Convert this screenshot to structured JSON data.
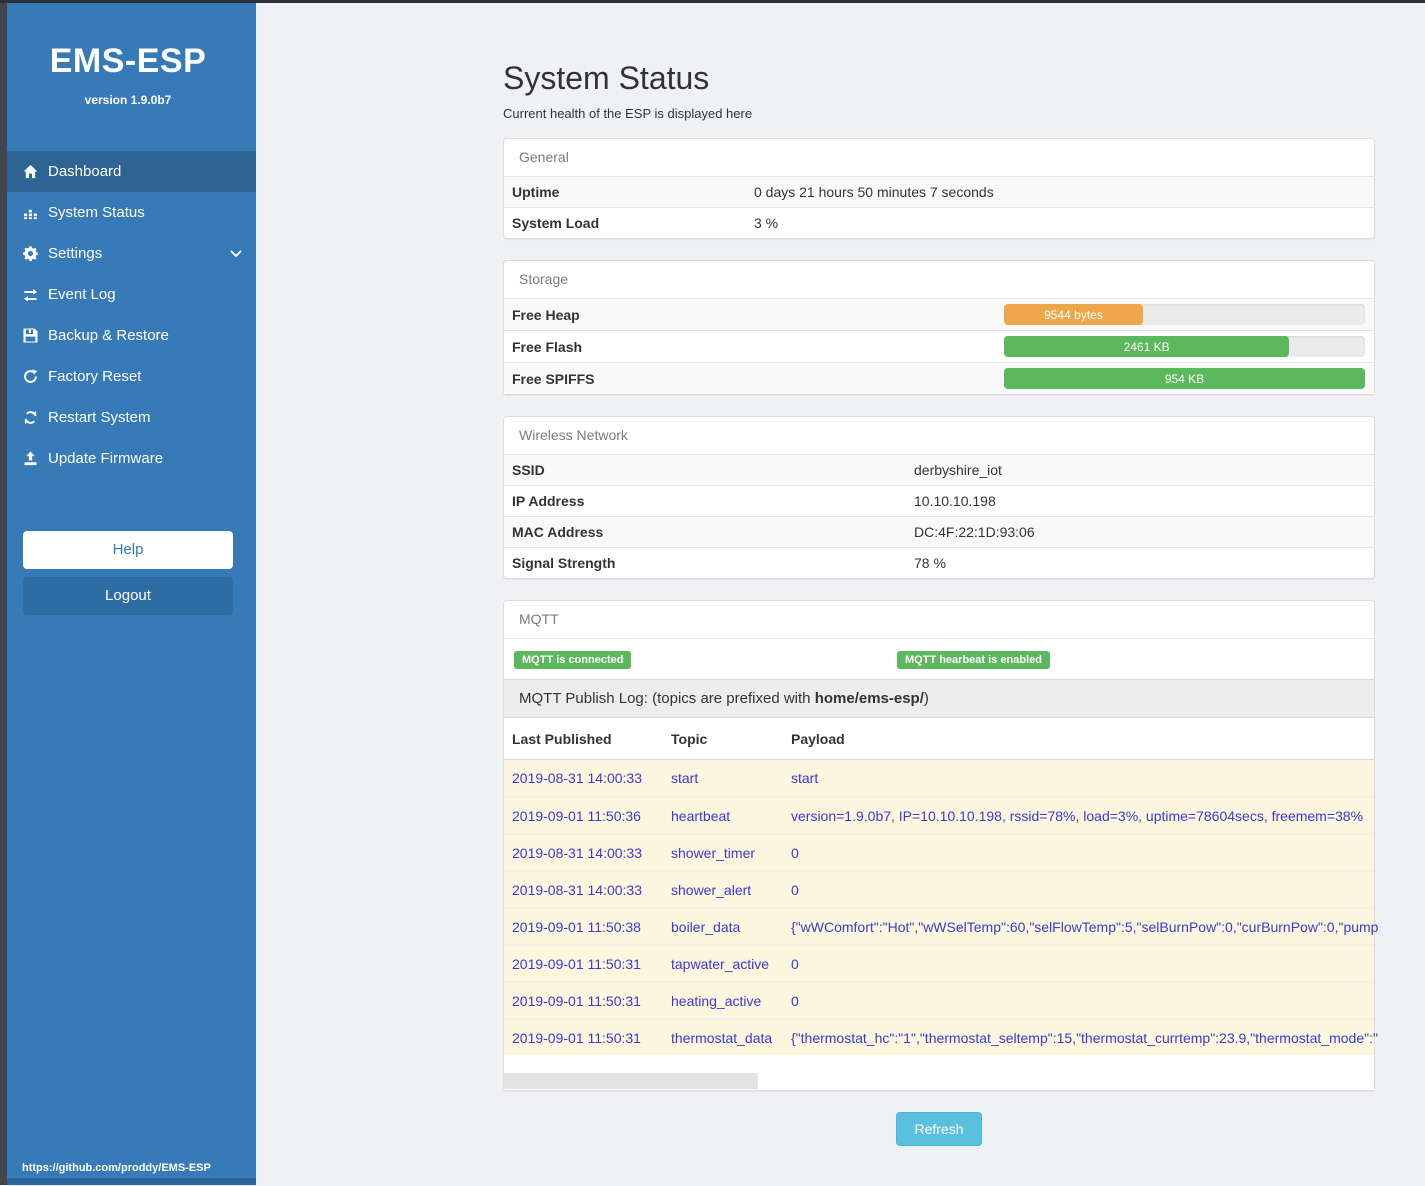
{
  "app": {
    "title": "EMS-ESP",
    "version": "version 1.9.0b7",
    "footer_url": "https://github.com/proddy/EMS-ESP"
  },
  "colors": {
    "sidebar_blue": "#377ab8",
    "active_item_blue": "#2d6494",
    "logout_blue": "#2e6da4",
    "success_green": "#5cb85c",
    "warning_orange": "#eda74a",
    "info_cyan": "#5bc0de",
    "log_text_blue": "#3a3ad0",
    "log_row_cream": "#fcf6df"
  },
  "sidebar": {
    "items": [
      {
        "label": "Dashboard",
        "icon": "home-icon",
        "active": true
      },
      {
        "label": "System Status",
        "icon": "chart-icon",
        "active": false
      },
      {
        "label": "Settings",
        "icon": "gear-icon",
        "active": false,
        "has_chevron": true
      },
      {
        "label": "Event Log",
        "icon": "exchange-icon",
        "active": false
      },
      {
        "label": "Backup & Restore",
        "icon": "save-icon",
        "active": false
      },
      {
        "label": "Factory Reset",
        "icon": "redo-icon",
        "active": false
      },
      {
        "label": "Restart System",
        "icon": "sync-icon",
        "active": false
      },
      {
        "label": "Update Firmware",
        "icon": "upload-icon",
        "active": false
      }
    ],
    "help_label": "Help",
    "logout_label": "Logout"
  },
  "page": {
    "title": "System Status",
    "subtitle": "Current health of the ESP is displayed here"
  },
  "general": {
    "header": "General",
    "rows": [
      {
        "label": "Uptime",
        "value": "0 days 21 hours 50 minutes 7 seconds"
      },
      {
        "label": "System Load",
        "value": "3 %"
      }
    ]
  },
  "storage": {
    "header": "Storage",
    "rows": [
      {
        "label": "Free Heap",
        "value": "9544 bytes",
        "percent": 38.5,
        "color": "#eda74a"
      },
      {
        "label": "Free Flash",
        "value": "2461 KB",
        "percent": 79,
        "color": "#5cb85c"
      },
      {
        "label": "Free SPIFFS",
        "value": "954 KB",
        "percent": 100,
        "color": "#5cb85c"
      }
    ]
  },
  "wireless": {
    "header": "Wireless Network",
    "rows": [
      {
        "label": "SSID",
        "value": "derbyshire_iot"
      },
      {
        "label": "IP Address",
        "value": "10.10.10.198"
      },
      {
        "label": "MAC Address",
        "value": "DC:4F:22:1D:93:06"
      },
      {
        "label": "Signal Strength",
        "value": "78 %"
      }
    ]
  },
  "mqtt": {
    "header": "MQTT",
    "badges": [
      {
        "label": "MQTT is connected"
      },
      {
        "label": "MQTT hearbeat is enabled"
      }
    ],
    "publish_log": {
      "prefix_text": "MQTT Publish Log: (topics are prefixed with ",
      "prefix_bold": "home/ems-esp/",
      "suffix_text": ")"
    },
    "table": {
      "headers": [
        "Last Published",
        "Topic",
        "Payload"
      ],
      "rows": [
        [
          "2019-08-31 14:00:33",
          "start",
          "start"
        ],
        [
          "2019-09-01 11:50:36",
          "heartbeat",
          "version=1.9.0b7, IP=10.10.10.198, rssid=78%, load=3%, uptime=78604secs, freemem=38%"
        ],
        [
          "2019-08-31 14:00:33",
          "shower_timer",
          "0"
        ],
        [
          "2019-08-31 14:00:33",
          "shower_alert",
          "0"
        ],
        [
          "2019-09-01 11:50:38",
          "boiler_data",
          "{\"wWComfort\":\"Hot\",\"wWSelTemp\":60,\"selFlowTemp\":5,\"selBurnPow\":0,\"curBurnPow\":0,\"pump"
        ],
        [
          "2019-09-01 11:50:31",
          "tapwater_active",
          "0"
        ],
        [
          "2019-09-01 11:50:31",
          "heating_active",
          "0"
        ],
        [
          "2019-09-01 11:50:31",
          "thermostat_data",
          "{\"thermostat_hc\":\"1\",\"thermostat_seltemp\":15,\"thermostat_currtemp\":23.9,\"thermostat_mode\":\""
        ]
      ]
    }
  },
  "actions": {
    "refresh_label": "Refresh"
  }
}
